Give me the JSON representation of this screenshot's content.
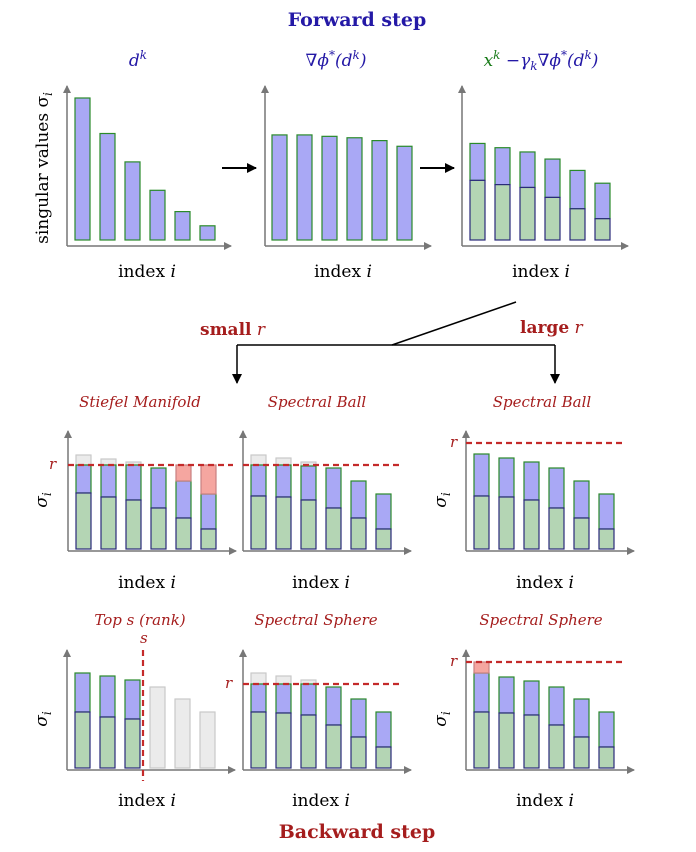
{
  "titles": {
    "forward": "Forward step",
    "backward": "Backward step"
  },
  "colors": {
    "navy": "#2419a6",
    "darkred": "#a51d1d",
    "green": "#177a17",
    "bar_blue": "#a9a8f5",
    "bar_green": "#b4d5b4",
    "bar_gray": "#ebebeb",
    "bar_red": "#f5a6a0",
    "bar_edge_green": "#2a8a2a",
    "bar_edge_navy": "#2a2a7a",
    "axis": "#777777"
  },
  "axes": {
    "ylabel_top": "singular values σ",
    "ylabel_top_sub": "i",
    "ylabel": "σ",
    "ylabel_sub": "i",
    "xlabel": "index",
    "xvar": "i"
  },
  "top_row": {
    "labels": [
      {
        "parts": [
          {
            "t": "d",
            "c": "navy"
          },
          {
            "t": "k",
            "sup": true,
            "c": "navy"
          }
        ]
      },
      {
        "parts": [
          {
            "t": "∇ϕ",
            "c": "navy"
          },
          {
            "t": "*",
            "sup": true,
            "c": "navy"
          },
          {
            "t": "(d",
            "c": "navy"
          },
          {
            "t": "k",
            "sup": true,
            "c": "navy"
          },
          {
            "t": ")",
            "c": "navy"
          }
        ]
      },
      {
        "parts": [
          {
            "t": "x",
            "c": "green"
          },
          {
            "t": "k",
            "sup": true,
            "c": "green"
          },
          {
            "t": " −γ",
            "c": "navy"
          },
          {
            "t": "k",
            "sub": true,
            "c": "navy"
          },
          {
            "t": "∇ϕ",
            "c": "navy"
          },
          {
            "t": "*",
            "sup": true,
            "c": "navy"
          },
          {
            "t": "(d",
            "c": "navy"
          },
          {
            "t": "k",
            "sup": true,
            "c": "navy"
          },
          {
            "t": ")",
            "c": "navy"
          }
        ]
      }
    ]
  },
  "branch": {
    "small": "small",
    "large": "large",
    "var": "r"
  },
  "middle_row": {
    "labels": [
      "Stiefel Manifold",
      "Spectral Ball",
      "Spectral Ball"
    ]
  },
  "bottom_row": {
    "labels": [
      "Top s (rank)",
      "Spectral Sphere",
      "Spectral Sphere"
    ],
    "s_marker": "s"
  },
  "threshold_label": "r",
  "chart_data": [
    {
      "id": "dk",
      "type": "bar",
      "relative_values": [
        1.0,
        0.75,
        0.55,
        0.35,
        0.2,
        0.1
      ]
    },
    {
      "id": "grad",
      "type": "bar",
      "relative_values": [
        0.74,
        0.74,
        0.73,
        0.72,
        0.7,
        0.66
      ]
    },
    {
      "id": "xk_step",
      "type": "bar",
      "stacked": true,
      "relative_blue": [
        0.68,
        0.65,
        0.62,
        0.57,
        0.49,
        0.4
      ],
      "relative_green": [
        0.42,
        0.39,
        0.37,
        0.3,
        0.22,
        0.15
      ]
    }
  ]
}
